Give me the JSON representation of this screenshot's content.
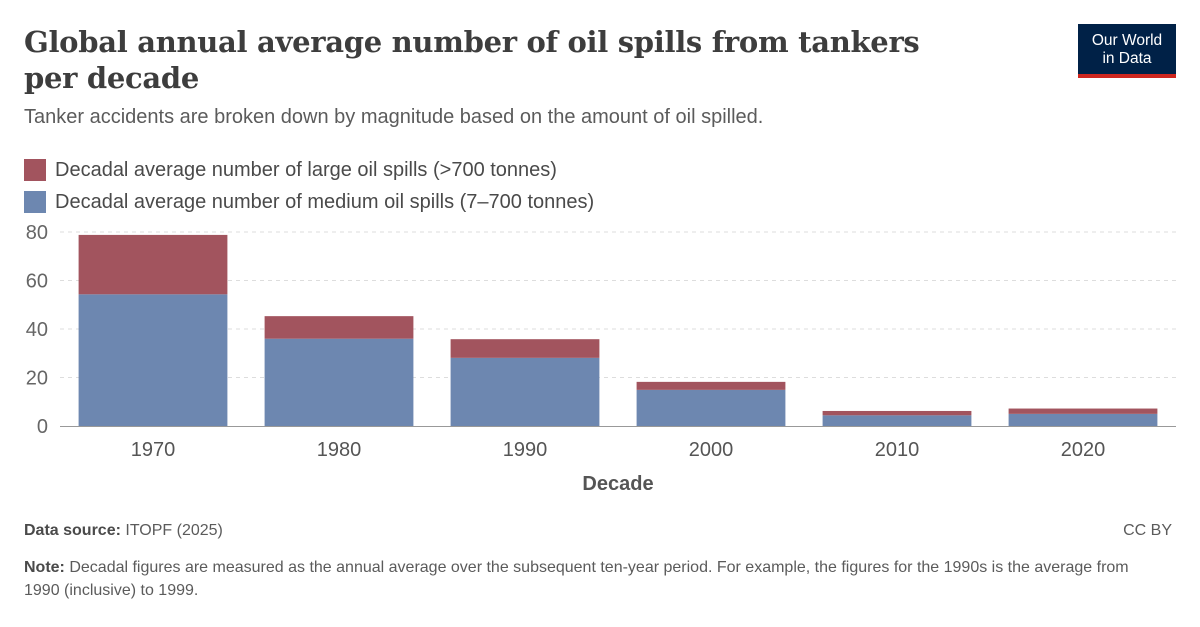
{
  "header": {
    "title": "Global annual average number of oil spills from tankers per decade",
    "subtitle": "Tanker accidents are broken down by magnitude based on the amount of oil spilled.",
    "logo_line1": "Our World",
    "logo_line2": "in Data"
  },
  "colors": {
    "large": "#a2545e",
    "medium": "#6d87b0",
    "logo_bg": "#002147",
    "logo_bar": "#ce261e"
  },
  "chart_data": {
    "type": "bar",
    "stacked": true,
    "categories": [
      "1970",
      "1980",
      "1990",
      "2000",
      "2010",
      "2020"
    ],
    "series": [
      {
        "name": "Decadal average number of medium oil spills (7–700 tonnes)",
        "values": [
          54.3,
          36.0,
          28.1,
          14.9,
          4.4,
          5.0
        ]
      },
      {
        "name": "Decadal average number of large oil spills (>700 tonnes)",
        "values": [
          24.5,
          9.3,
          7.7,
          3.3,
          1.8,
          2.2
        ]
      }
    ],
    "xlabel": "Decade",
    "ylabel": "",
    "ylim": [
      0,
      80
    ],
    "yticks": [
      "0",
      "20",
      "40",
      "60",
      "80"
    ],
    "grid": true,
    "legend_position": "top-left"
  },
  "footer": {
    "source_label": "Data source:",
    "source_text": " ITOPF (2025)",
    "license": "CC BY",
    "note_label": "Note:",
    "note_text": " Decadal figures are measured as the annual average over the subsequent ten-year period. For example, the figures for the 1990s is the average from 1990 (inclusive) to 1999."
  }
}
